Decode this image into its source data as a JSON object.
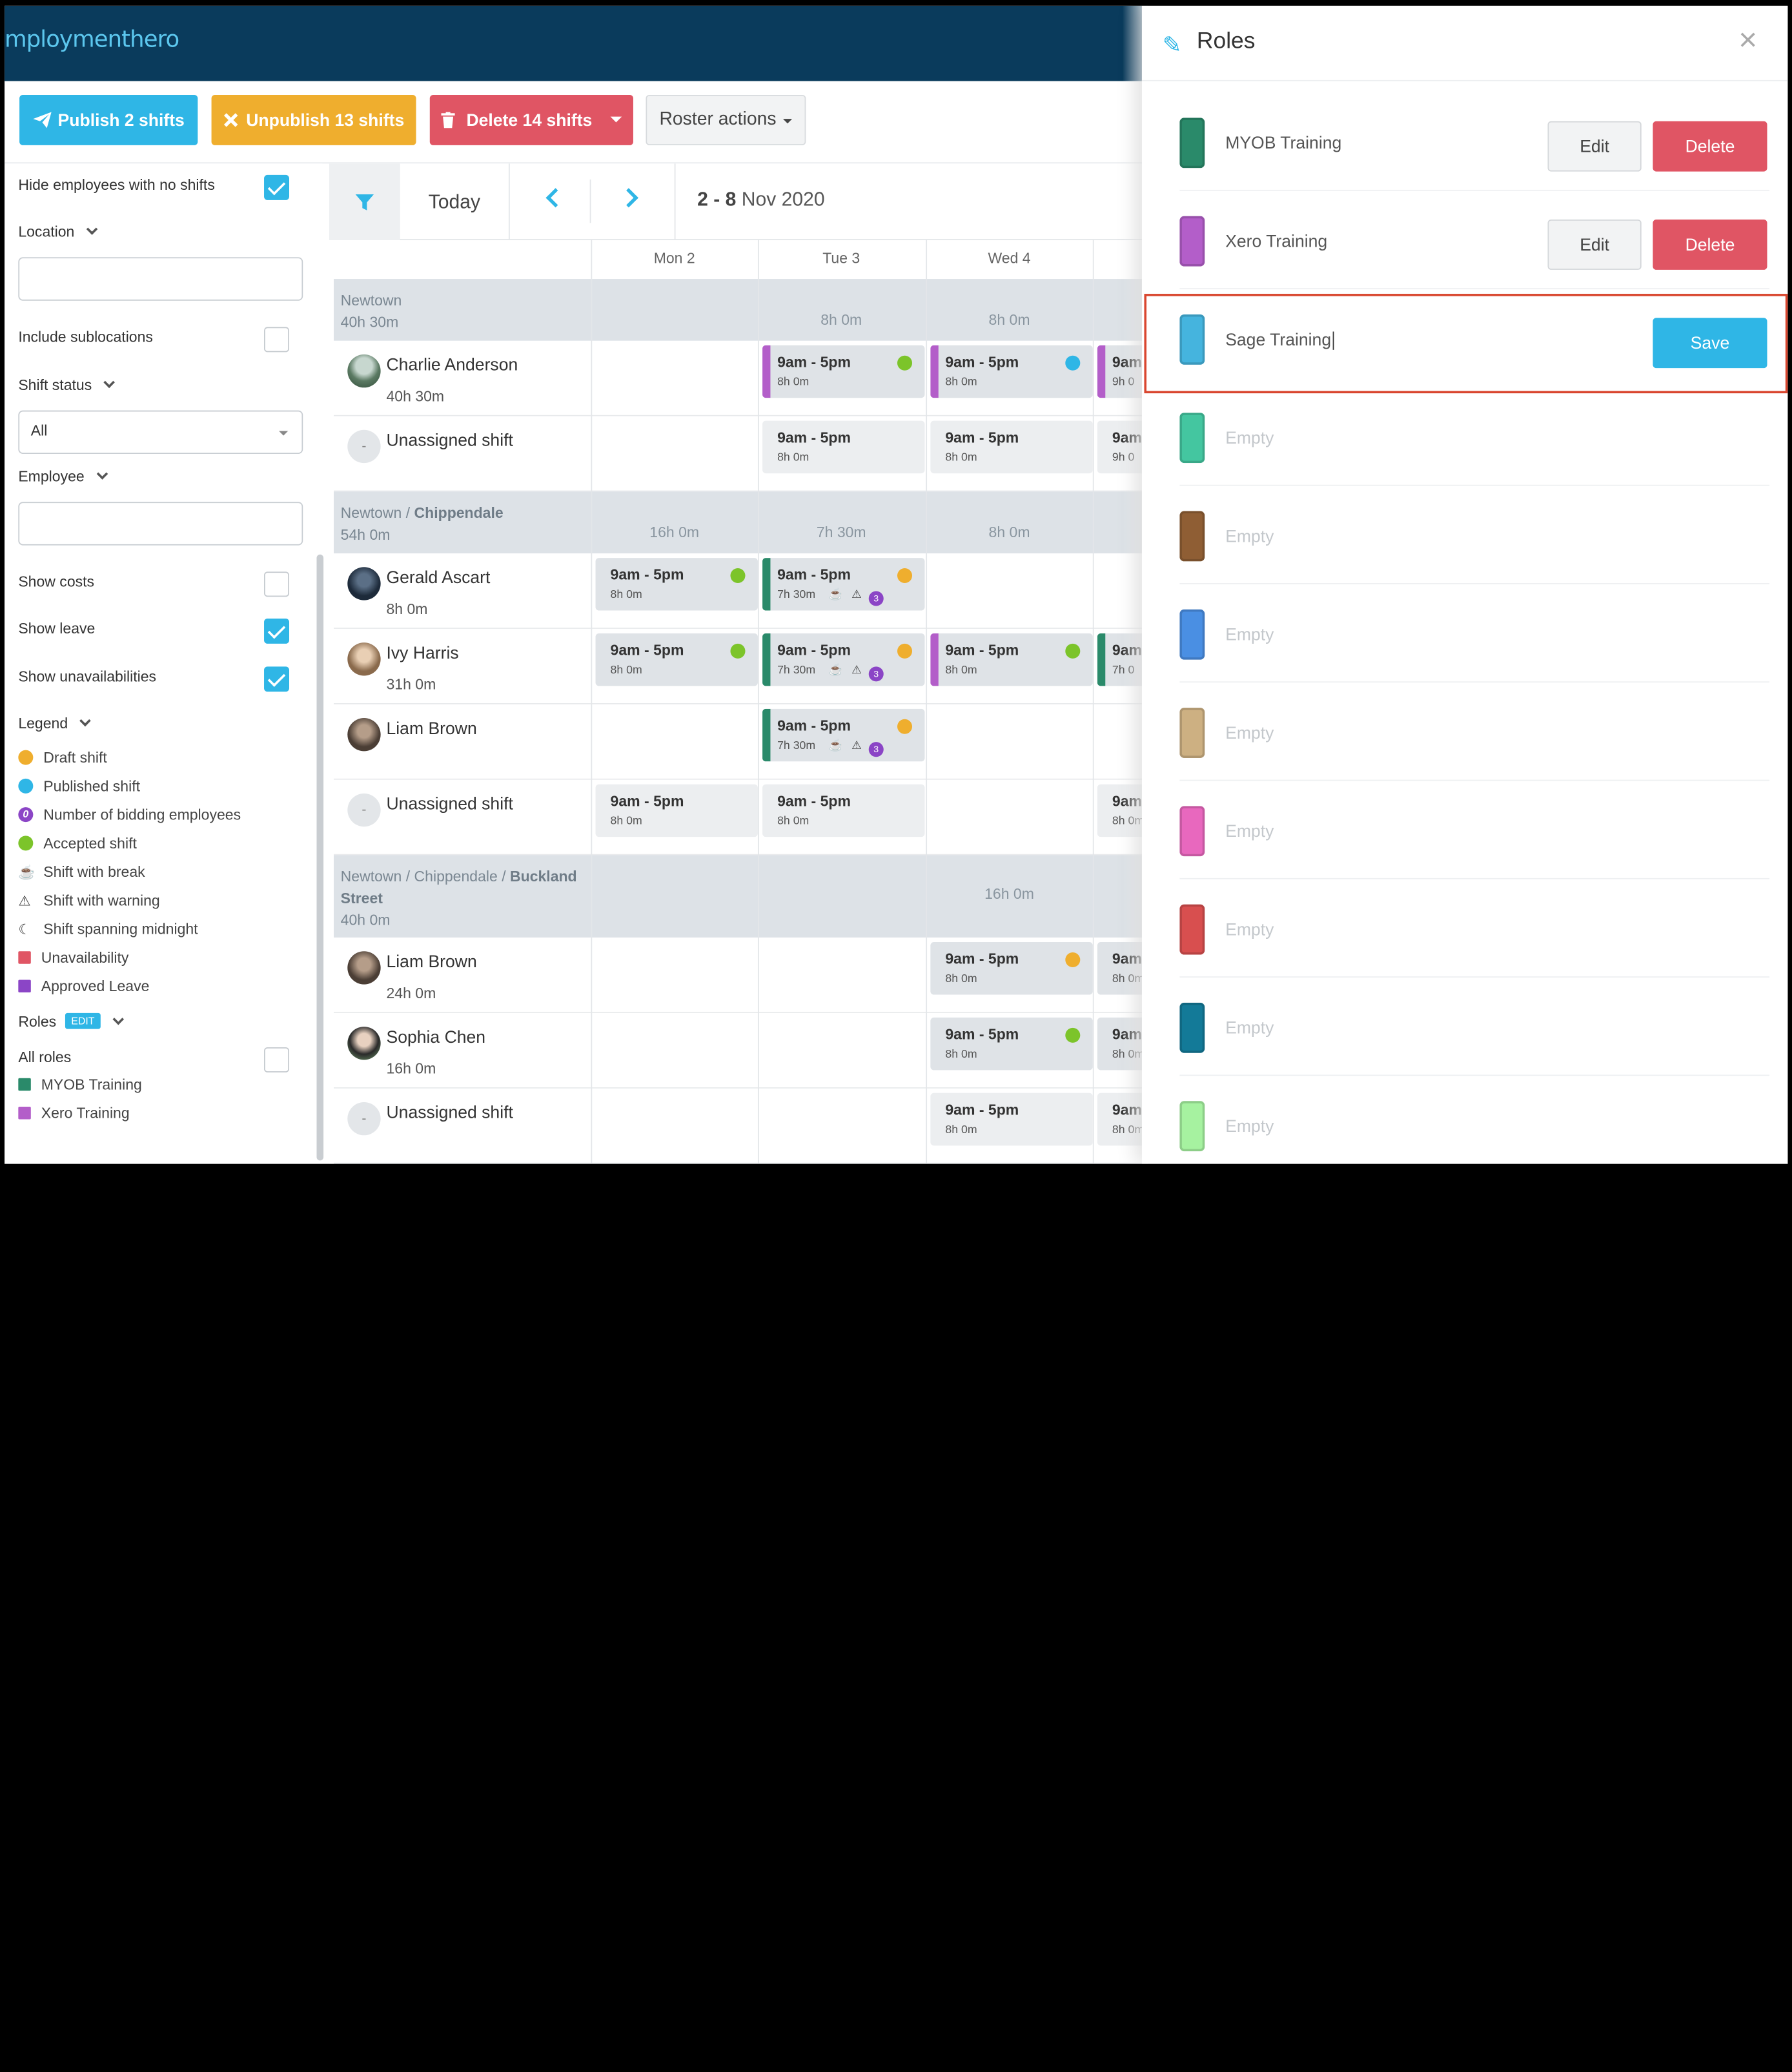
{
  "brand": {
    "logo": "mploymenthero"
  },
  "toolbar": {
    "publish": "Publish 2 shifts",
    "unpublish": "Unpublish 13 shifts",
    "delete": "Delete 14 shifts",
    "roster_actions": "Roster actions"
  },
  "sidebar": {
    "hide_no_shifts": "Hide employees with no shifts",
    "location": "Location",
    "include_sublocations": "Include sublocations",
    "shift_status": "Shift status",
    "shift_status_value": "All",
    "employee": "Employee",
    "show_costs": "Show costs",
    "show_leave": "Show leave",
    "show_unavailabilities": "Show unavailabilities",
    "legend": "Legend",
    "legend_items": [
      "Draft shift",
      "Published shift",
      "Number of bidding employees",
      "Accepted shift",
      "Shift with break",
      "Shift with warning",
      "Shift spanning midnight",
      "Unavailability",
      "Approved Leave"
    ],
    "legend_bid_count": "0",
    "roles": "Roles",
    "roles_edit": "EDIT",
    "all_roles": "All roles",
    "role_items": [
      "MYOB Training",
      "Xero Training"
    ]
  },
  "calendar": {
    "today": "Today",
    "range_bold": "2 - 8",
    "range_rest": "Nov 2020",
    "days": [
      "Mon 2",
      "Tue 3",
      "Wed 4"
    ],
    "groups": [
      {
        "name": "Newtown",
        "total": "40h 30m",
        "day_totals": [
          "",
          "8h 0m",
          "8h 0m"
        ]
      },
      {
        "name_prefix": "Newtown / ",
        "name_bold": "Chippendale",
        "total": "54h 0m",
        "day_totals": [
          "16h 0m",
          "7h 30m",
          "8h 0m"
        ]
      },
      {
        "name_prefix": "Newtown / Chippendale / ",
        "name_bold": "Buckland",
        "name_line2": "Street",
        "total": "40h 0m",
        "day_totals": [
          "",
          "",
          "16h 0m"
        ]
      }
    ],
    "employees": [
      {
        "name": "Charlie Anderson",
        "hours": "40h 30m"
      },
      {
        "name": "Unassigned shift",
        "hours": ""
      },
      {
        "name": "Gerald Ascart",
        "hours": "8h 0m"
      },
      {
        "name": "Ivy Harris",
        "hours": "31h 0m"
      },
      {
        "name": "Liam Brown",
        "hours": ""
      },
      {
        "name": "Unassigned shift",
        "hours": ""
      },
      {
        "name": "Liam Brown",
        "hours": "24h 0m"
      },
      {
        "name": "Sophia Chen",
        "hours": "16h 0m"
      },
      {
        "name": "Unassigned shift",
        "hours": ""
      }
    ],
    "unassigned_initial": "-",
    "shift_time": "9am - 5pm",
    "shift_time_cut": "9am",
    "dur_8": "8h 0m",
    "dur_9": "9h 0m",
    "dur_9_cut": "9h 0",
    "dur_8_cut": "8h 0m",
    "dur_730": "7h 30m",
    "dur_7_cut": "7h 0",
    "bid_count": "3"
  },
  "panel": {
    "title": "Roles",
    "edit": "Edit",
    "delete": "Delete",
    "save": "Save",
    "roles": [
      {
        "name": "MYOB Training",
        "color": "#2a8a6a"
      },
      {
        "name": "Xero Training",
        "color": "#b35ec9"
      },
      {
        "name": "Sage Training",
        "color": "#45b4de"
      },
      {
        "name": "Empty",
        "color": "#44c6a0"
      },
      {
        "name": "Empty",
        "color": "#8f5e34"
      },
      {
        "name": "Empty",
        "color": "#4a8fe3"
      },
      {
        "name": "Empty",
        "color": "#cdb082"
      },
      {
        "name": "Empty",
        "color": "#e868be"
      },
      {
        "name": "Empty",
        "color": "#d84f4f"
      },
      {
        "name": "Empty",
        "color": "#137a98"
      },
      {
        "name": "Empty",
        "color": "#a6f2a0"
      }
    ]
  },
  "colors": {
    "draft": "#efae2e",
    "published": "#2fb6e6",
    "accepted": "#7cc42a",
    "bidding": "#8b45c6",
    "unavailability": "#e05564",
    "leave": "#8b45c6",
    "myob": "#2a8a6a",
    "xero": "#b35ec9"
  }
}
